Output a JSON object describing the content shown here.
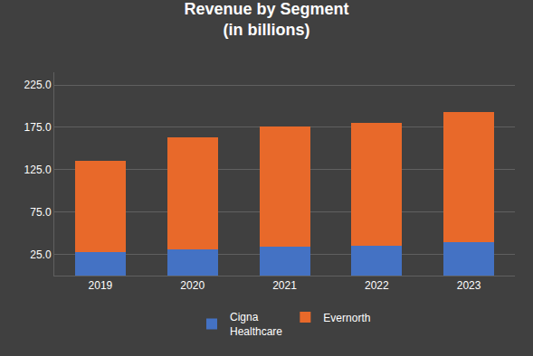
{
  "chart_data": {
    "type": "bar",
    "stacked": true,
    "title": "Revenue by Segment\n(in billions)",
    "categories": [
      "2019",
      "2020",
      "2021",
      "2022",
      "2023"
    ],
    "series": [
      {
        "name": "Cigna\nHealthcare",
        "color": "#4472C4",
        "values": [
          28.0,
          31.0,
          34.0,
          35.0,
          40.0
        ]
      },
      {
        "name": "Evernorth",
        "color": "#E8692A",
        "values": [
          107.0,
          132.0,
          142.0,
          145.0,
          153.0
        ]
      }
    ],
    "ylim": [
      0,
      240
    ],
    "yticks": [
      {
        "value": 25,
        "label": "25.0"
      },
      {
        "value": 75,
        "label": "75.0"
      },
      {
        "value": 125,
        "label": "125.0"
      },
      {
        "value": 175,
        "label": "175.0"
      },
      {
        "value": 225,
        "label": "225.0"
      }
    ],
    "grid": true,
    "legend": "bottom"
  }
}
